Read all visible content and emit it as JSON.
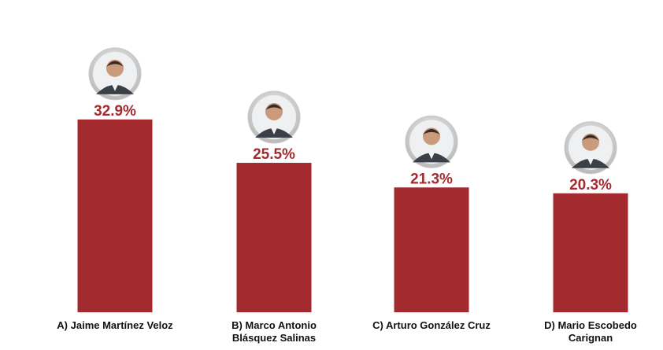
{
  "colors": {
    "bar": "#a32a2f",
    "value_text": "#a32a2f",
    "label_text": "#111111",
    "photo_ring": "#c9c9c9"
  },
  "chart_data": {
    "type": "bar",
    "categories": [
      [
        "A) Jaime Martínez Veloz"
      ],
      [
        "B) Marco Antonio",
        "Blásquez Salinas"
      ],
      [
        "C) Arturo González Cruz"
      ],
      [
        "D) Mario Escobedo",
        "Carignan"
      ]
    ],
    "values": [
      32.9,
      25.5,
      21.3,
      20.3
    ],
    "value_labels": [
      "32.9%",
      "25.5%",
      "21.3%",
      "20.3%"
    ],
    "icons": [
      "candidate-portrait-icon",
      "candidate-portrait-icon",
      "candidate-portrait-icon",
      "candidate-portrait-icon"
    ],
    "ylim": [
      0,
      34
    ],
    "grid": false,
    "legend": "none"
  }
}
